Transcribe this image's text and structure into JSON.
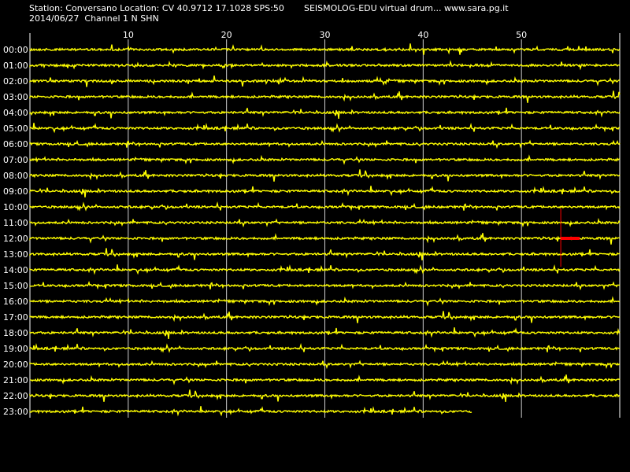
{
  "header": {
    "line1": "Station: Conversano Location: CV 40.9712 17.1028 SPS:50",
    "line2": "2014/06/27  Channel 1 N SHN",
    "right": "SEISMOLOG-EDU virtual drum... www.sara.pg.it"
  },
  "drum": {
    "minute_ticks": [
      "10",
      "20",
      "30",
      "40",
      "50"
    ],
    "minute_values": [
      10,
      20,
      30,
      40,
      50
    ],
    "minutes_total": 60,
    "hours": [
      "00:00",
      "01:00",
      "02:00",
      "03:00",
      "04:00",
      "05:00",
      "06:00",
      "07:00",
      "08:00",
      "09:00",
      "10:00",
      "11:00",
      "12:00",
      "13:00",
      "14:00",
      "15:00",
      "16:00",
      "17:00",
      "18:00",
      "19:00",
      "20:00",
      "21:00",
      "22:00",
      "23:00"
    ],
    "last_trace_end_minute": 45,
    "marker_hour_index": 12,
    "marker_minute": 54,
    "colors": {
      "background": "#000000",
      "trace": "#ffff00",
      "grid": "#ffffff",
      "marker": "#ff0000"
    }
  }
}
